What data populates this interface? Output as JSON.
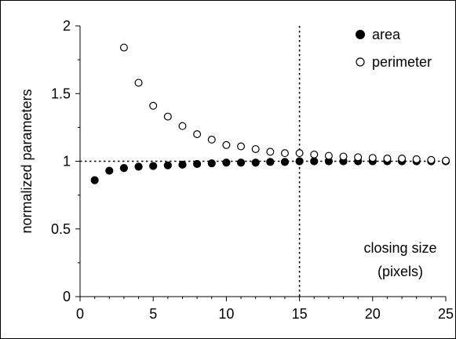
{
  "chart_data": {
    "type": "scatter",
    "title": "",
    "xlabel": "",
    "ylabel": "normalized parameters",
    "xlim": [
      0,
      25
    ],
    "ylim": [
      0,
      2
    ],
    "x_ticks": [
      "0",
      "5",
      "10",
      "15",
      "20",
      "25"
    ],
    "y_ticks": [
      "0",
      "0.5",
      "1",
      "1.5",
      "2"
    ],
    "grid": false,
    "legend_position": "top-right",
    "annotation": [
      "closing size",
      "(pixels)"
    ],
    "reference_lines": [
      {
        "orientation": "horizontal",
        "y": 1
      },
      {
        "orientation": "vertical",
        "x": 15
      }
    ],
    "series": [
      {
        "name": "area",
        "marker": "filled-circle",
        "x": [
          1,
          2,
          3,
          4,
          5,
          6,
          7,
          8,
          9,
          10,
          11,
          12,
          13,
          14,
          15,
          16,
          17,
          18,
          19,
          20,
          21,
          22,
          23,
          24,
          25
        ],
        "y": [
          0.86,
          0.93,
          0.95,
          0.96,
          0.965,
          0.97,
          0.975,
          0.98,
          0.985,
          0.99,
          0.99,
          0.99,
          0.995,
          0.995,
          1.0,
          1.0,
          1.0,
          1.0,
          1.0,
          1.0,
          1.0,
          1.0,
          1.0,
          1.0,
          1.0
        ]
      },
      {
        "name": "perimeter",
        "marker": "open-circle",
        "x": [
          3,
          4,
          5,
          6,
          7,
          8,
          9,
          10,
          11,
          12,
          13,
          14,
          15,
          16,
          17,
          18,
          19,
          20,
          21,
          22,
          23,
          24,
          25
        ],
        "y": [
          1.84,
          1.58,
          1.41,
          1.33,
          1.26,
          1.2,
          1.16,
          1.12,
          1.11,
          1.09,
          1.07,
          1.06,
          1.06,
          1.05,
          1.04,
          1.035,
          1.03,
          1.025,
          1.02,
          1.02,
          1.015,
          1.01,
          1.005
        ]
      }
    ]
  }
}
